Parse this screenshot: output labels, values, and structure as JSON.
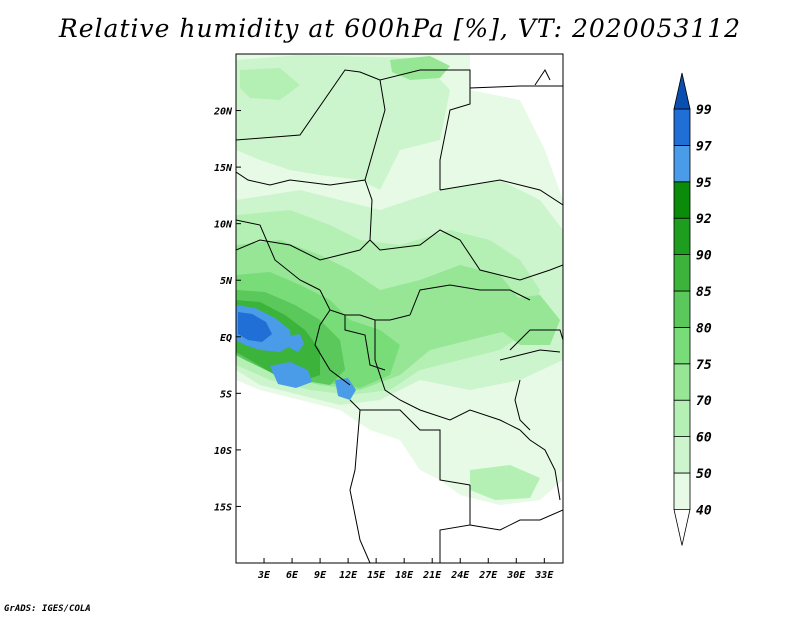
{
  "title": "Relative humidity at 600hPa [%], VT: 2020053112",
  "credit": "GrADS: IGES/COLA",
  "map": {
    "lon_range": [
      0,
      35
    ],
    "lat_range": [
      -20,
      25
    ],
    "lon_ticks": [
      "3E",
      "6E",
      "9E",
      "12E",
      "15E",
      "18E",
      "21E",
      "24E",
      "27E",
      "30E",
      "33E"
    ],
    "lat_ticks": [
      "20N",
      "15N",
      "10N",
      "5N",
      "EQ",
      "5S",
      "10S",
      "15S"
    ],
    "lat_tick_values": [
      20,
      15,
      10,
      5,
      0,
      -5,
      -10,
      -15
    ],
    "lon_tick_values": [
      3,
      6,
      9,
      12,
      15,
      18,
      21,
      24,
      27,
      30,
      33
    ]
  },
  "colorbar": {
    "labels": [
      "40",
      "50",
      "60",
      "70",
      "75",
      "80",
      "85",
      "90",
      "92",
      "95",
      "97",
      "99"
    ],
    "colors": [
      "#e6fae6",
      "#cdf5cd",
      "#b4f0b4",
      "#96e696",
      "#78dc78",
      "#5ac85a",
      "#3cb43c",
      "#1e9e1e",
      "#0a8c0a",
      "#4a9be8",
      "#1f6fd6",
      "#0a4fb0"
    ],
    "below_color": "#ffffff",
    "above_color": "#0a4fb0"
  }
}
